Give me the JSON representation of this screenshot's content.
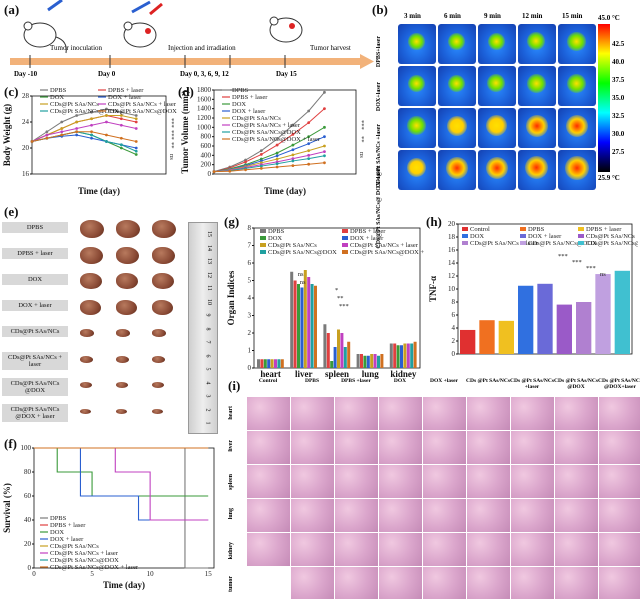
{
  "panel_labels": [
    "(a)",
    "(b)",
    "(c)",
    "(d)",
    "(e)",
    "(f)",
    "(g)",
    "(h)",
    "(i)"
  ],
  "timeline": {
    "day_labels": [
      "Day -10",
      "Day 0",
      "Day 0, 3, 6, 9, 12",
      "Day 15"
    ],
    "steps": [
      "Tumor inoculation",
      "Injection and irradiation",
      "Tumor harvest"
    ]
  },
  "thermal": {
    "times": [
      "3 min",
      "6 min",
      "9 min",
      "12 min",
      "15 min"
    ],
    "rows": [
      "DPBS+laser",
      "DOX+laser",
      "CDs@Pt SAs/NCs +laser",
      "CDs@Pt SAs/NCs@ DOX+laser"
    ],
    "scale_max": "45.0 °C",
    "scale_min": "25.9 °C",
    "scale_ticks": [
      "42.5",
      "40.0",
      "37.5",
      "35.0",
      "32.5",
      "30.0",
      "27.5"
    ]
  },
  "charts": {
    "body_weight": {
      "type": "line",
      "ylabel": "Body Weight (g)",
      "xlabel": "Time (day)",
      "x": [
        0,
        2,
        4,
        6,
        8,
        10,
        12,
        14,
        16
      ],
      "xlim": [
        0,
        18
      ],
      "ylim": [
        16,
        28
      ],
      "yticks": [
        "16",
        "20",
        "24",
        "28"
      ],
      "legend": [
        "DPBS",
        "DPBS + laser",
        "DOX",
        "DOX + laser",
        "CDs@Pt SAs/NCs",
        "CDs@Pt SAs/NCs + laser",
        "CDs@Pt SAs/NCs@DOX",
        "CDs@Pt SAs/NCs@DOX + laser"
      ],
      "sig": [
        "***",
        "***",
        "**",
        "ns"
      ]
    },
    "tumor_volume": {
      "type": "line",
      "ylabel": "Tumor Volume (mm³)",
      "xlabel": "Time (day)",
      "x": [
        0,
        2,
        4,
        6,
        8,
        10,
        12,
        14,
        16
      ],
      "ylim": [
        0,
        1800
      ],
      "yticks": [
        "0",
        "200",
        "400",
        "600",
        "800",
        "1000",
        "1200",
        "1400",
        "1600",
        "1800"
      ],
      "legend": [
        "DPBS",
        "DPBS + laser",
        "DOX",
        "DOX + laser",
        "CDs@Pt SAs/NCs",
        "CDs@Pt SAs/NCs + laser",
        "CDs@Pt SAs/NCs@DOX",
        "CDs@Pt SAs/NCs@DOX + laser"
      ],
      "sig": [
        "***",
        "**",
        "ns"
      ]
    },
    "survival": {
      "type": "line",
      "ylabel": "Survival (%)",
      "xlabel": "Time (day)",
      "ylim": [
        0,
        100
      ],
      "yticks": [
        "0",
        "20",
        "40",
        "60",
        "80",
        "100"
      ],
      "xticks": [
        "0",
        "5",
        "10",
        "15"
      ],
      "legend": [
        "DPBS",
        "DPBS + laser",
        "DOX",
        "DOX + laser",
        "CDs@Pt SAs/NCs",
        "CDs@Pt SAs/NCs + laser",
        "CDs@Pt SAs/NCs@DOX",
        "CDs@Pt SAs/NCs@DOX + laser"
      ]
    },
    "organ": {
      "type": "bar",
      "ylabel": "Organ Indices",
      "categories": [
        "heart",
        "liver",
        "spleen",
        "lung",
        "kidney"
      ],
      "yticks": [
        "0",
        "1",
        "2",
        "3",
        "4",
        "5",
        "6",
        "7",
        "8"
      ],
      "legend": [
        "DPBS",
        "DPBS + laser",
        "DOX",
        "DOX + laser",
        "CDs@Pt SAs/NCs",
        "CDs@Pt SAs/NCs + laser",
        "CDs@Pt SAs/NCs@DOX",
        "CDs@Pt SAs/NCs@DOX + laser"
      ],
      "sig": [
        "ns",
        "ns",
        "*",
        "**",
        "***"
      ]
    },
    "tnf": {
      "type": "bar",
      "ylabel": "TNF-α",
      "yticks": [
        "0",
        "2",
        "4",
        "6",
        "8",
        "10",
        "12",
        "14",
        "16",
        "18",
        "20"
      ],
      "values": [
        3.7,
        5.2,
        5.1,
        10.5,
        10.8,
        7.6,
        8.0,
        12.3,
        12.8
      ],
      "legend": [
        "Control",
        "DPBS",
        "DPBS + laser",
        "DOX",
        "DOX + laser",
        "CDs@Pt SAs/NCs",
        "CDs@Pt SAs/NCs + laser",
        "CDs@Pt SAs/NCs@DOX",
        "CDs@Pt SAs/NCs@DOX + laser"
      ],
      "sig": [
        "***",
        "***",
        "***",
        "ns"
      ]
    }
  },
  "tumor_photos": {
    "rows": [
      "DPBS",
      "DPBS + laser",
      "DOX",
      "DOX + laser",
      "CDs@Pt SAs/NCs",
      "CDs@Pt SAs/NCs + laser",
      "CDs@Pt SAs/NCs @DOX",
      "CDs@Pt SAs/NCs @DOX + laser"
    ],
    "ruler_ticks": [
      "1",
      "2",
      "3",
      "4",
      "5",
      "6",
      "7",
      "8",
      "9",
      "10",
      "11",
      "12",
      "13",
      "14",
      "15"
    ]
  },
  "histology": {
    "columns": [
      "Control",
      "DPBS",
      "DPBS +laser",
      "DOX",
      "DOX +laser",
      "CDs @Pt SAs/NCs",
      "CDs @Pt SAs/NCs +laser",
      "CDs @Pt SAs/NCs @DOX",
      "CDs @Pt SAs/NCs @DOX+laser"
    ],
    "rows": [
      "heart",
      "liver",
      "spleen",
      "lung",
      "kidney",
      "tumor"
    ]
  }
}
